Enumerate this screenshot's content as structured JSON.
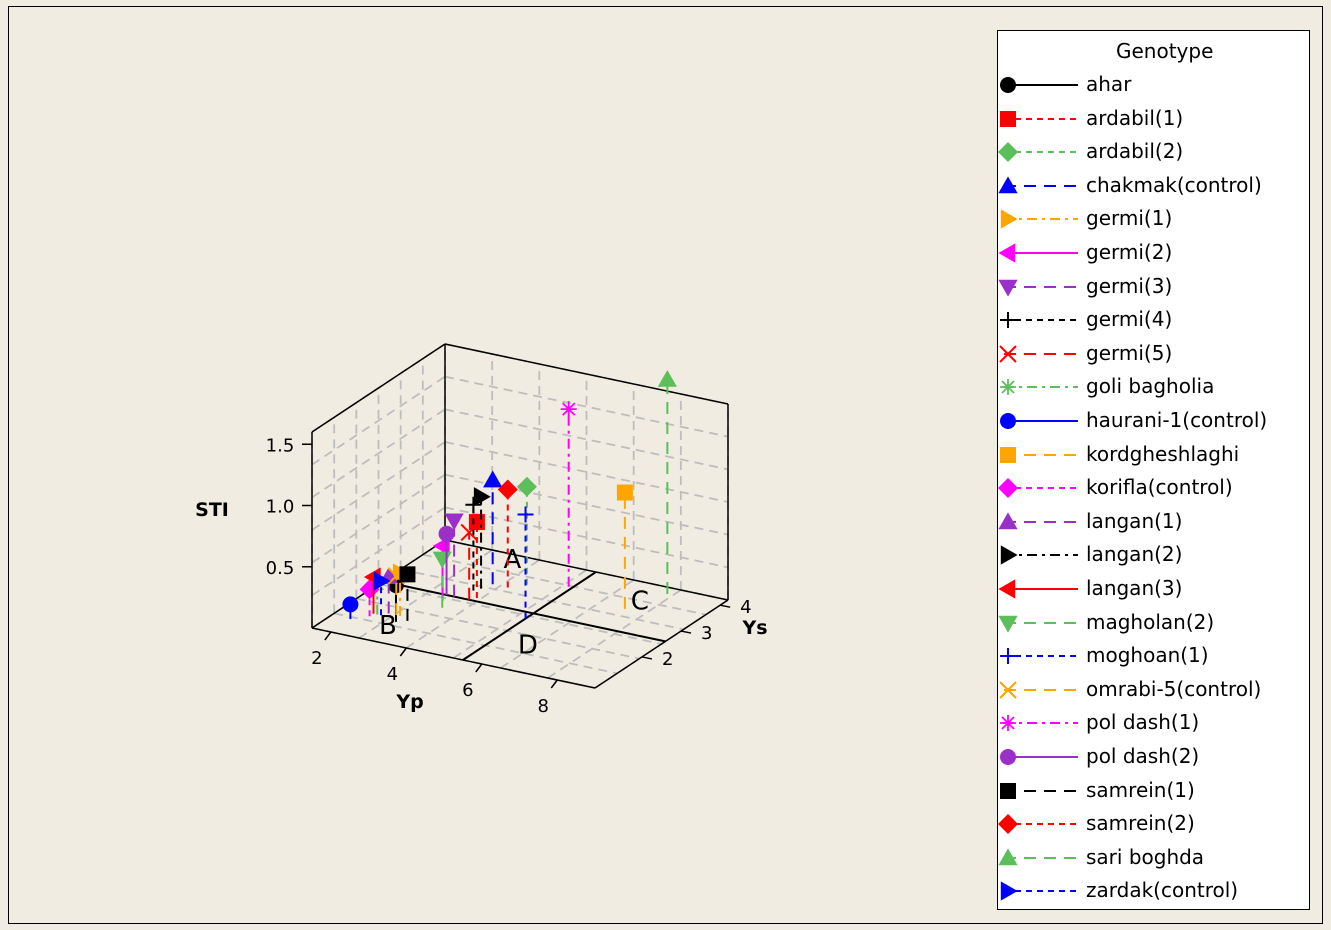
{
  "chart_data": {
    "type": "scatter",
    "subtype": "3d-scatter-with-drop-lines",
    "xlabel": "Yp",
    "ylabel": "Ys",
    "zlabel": "STI",
    "xlim": [
      1.5,
      9
    ],
    "ylim": [
      0.8,
      4.2
    ],
    "zlim": [
      0,
      1.6
    ],
    "x_ticks": [
      "2",
      "4",
      "6",
      "8"
    ],
    "y_ticks": [
      "2",
      "3",
      "4"
    ],
    "z_ticks": [
      "0.5",
      "1.0",
      "1.5"
    ],
    "grid": true,
    "regions": [
      "A",
      "B",
      "C",
      "D"
    ],
    "legend_title": "Genotype",
    "legend_position": "right",
    "series": [
      {
        "name": "ahar",
        "color": "#000000",
        "marker": "circle",
        "dash": "solid",
        "x": 3.0,
        "y": 1.5,
        "z": 0.3
      },
      {
        "name": "ardabil(1)",
        "color": "#ff0000",
        "marker": "square",
        "dash": "dash",
        "x": 3.9,
        "y": 2.7,
        "z": 0.62
      },
      {
        "name": "ardabil(2)",
        "color": "#5cbf5c",
        "marker": "diamond",
        "dash": "dash",
        "x": 4.5,
        "y": 3.4,
        "z": 0.8
      },
      {
        "name": "chakmak(control)",
        "color": "#0000ff",
        "marker": "triangle-up",
        "dash": "longdash",
        "x": 3.8,
        "y": 3.2,
        "z": 0.85
      },
      {
        "name": "germi(1)",
        "color": "#ffa500",
        "marker": "triangle-right",
        "dash": "dashdot",
        "x": 2.9,
        "y": 1.7,
        "z": 0.35
      },
      {
        "name": "germi(2)",
        "color": "#ff00ff",
        "marker": "triangle-left",
        "dash": "solid",
        "x": 3.3,
        "y": 2.4,
        "z": 0.45
      },
      {
        "name": "germi(3)",
        "color": "#9b30c8",
        "marker": "triangle-down",
        "dash": "longdash",
        "x": 3.4,
        "y": 2.6,
        "z": 0.62
      },
      {
        "name": "germi(4)",
        "color": "#000000",
        "marker": "plus",
        "dash": "dash",
        "x": 3.6,
        "y": 2.9,
        "z": 0.7
      },
      {
        "name": "germi(5)",
        "color": "#ff0000",
        "marker": "x",
        "dash": "longdash",
        "x": 3.8,
        "y": 2.6,
        "z": 0.55
      },
      {
        "name": "goli bagholia",
        "color": "#5cbf5c",
        "marker": "asterisk",
        "dash": "dashdot",
        "x": 2.4,
        "y": 1.6,
        "z": 0.25
      },
      {
        "name": "haurani-1(control)",
        "color": "#0000ff",
        "marker": "circle",
        "dash": "solid",
        "x": 2.0,
        "y": 1.3,
        "z": 0.12
      },
      {
        "name": "kordgheshlaghi",
        "color": "#ffa500",
        "marker": "square",
        "dash": "longdash",
        "x": 7.2,
        "y": 3.3,
        "z": 0.95
      },
      {
        "name": "korifla(control)",
        "color": "#ff00ff",
        "marker": "diamond",
        "dash": "dash",
        "x": 2.3,
        "y": 1.5,
        "z": 0.22
      },
      {
        "name": "langan(1)",
        "color": "#9b30c8",
        "marker": "triangle-up",
        "dash": "longdash",
        "x": 2.6,
        "y": 1.7,
        "z": 0.3
      },
      {
        "name": "langan(2)",
        "color": "#000000",
        "marker": "triangle-right",
        "dash": "dashdot",
        "x": 3.7,
        "y": 3.0,
        "z": 0.75
      },
      {
        "name": "langan(3)",
        "color": "#ff0000",
        "marker": "triangle-left",
        "dash": "solid",
        "x": 2.3,
        "y": 1.6,
        "z": 0.3
      },
      {
        "name": "magholan(2)",
        "color": "#5cbf5c",
        "marker": "triangle-down",
        "dash": "longdash",
        "x": 3.5,
        "y": 2.2,
        "z": 0.4
      },
      {
        "name": "moghoan(1)",
        "color": "#0000ff",
        "marker": "plus",
        "dash": "dash",
        "x": 5.5,
        "y": 2.4,
        "z": 0.85
      },
      {
        "name": "omrabi-5(control)",
        "color": "#ffa500",
        "marker": "x",
        "dash": "longdash",
        "x": 2.8,
        "y": 1.7,
        "z": 0.32
      },
      {
        "name": "pol dash(1)",
        "color": "#ff00ff",
        "marker": "asterisk",
        "dash": "dashdot",
        "x": 5.4,
        "y": 3.6,
        "z": 1.45
      },
      {
        "name": "pol dash(2)",
        "color": "#9b30c8",
        "marker": "circle",
        "dash": "solid",
        "x": 3.2,
        "y": 2.6,
        "z": 0.5
      },
      {
        "name": "samrein(1)",
        "color": "#000000",
        "marker": "square",
        "dash": "longdash",
        "x": 3.2,
        "y": 1.6,
        "z": 0.38
      },
      {
        "name": "samrein(2)",
        "color": "#ff0000",
        "marker": "diamond",
        "dash": "dash",
        "x": 4.2,
        "y": 3.2,
        "z": 0.8
      },
      {
        "name": "sari boghda",
        "color": "#5cbf5c",
        "marker": "triangle-up",
        "dash": "longdash",
        "x": 7.6,
        "y": 4.0,
        "z": 1.75
      },
      {
        "name": "zardak(control)",
        "color": "#0000ff",
        "marker": "triangle-right",
        "dash": "dash",
        "x": 2.5,
        "y": 1.6,
        "z": 0.28
      }
    ]
  }
}
